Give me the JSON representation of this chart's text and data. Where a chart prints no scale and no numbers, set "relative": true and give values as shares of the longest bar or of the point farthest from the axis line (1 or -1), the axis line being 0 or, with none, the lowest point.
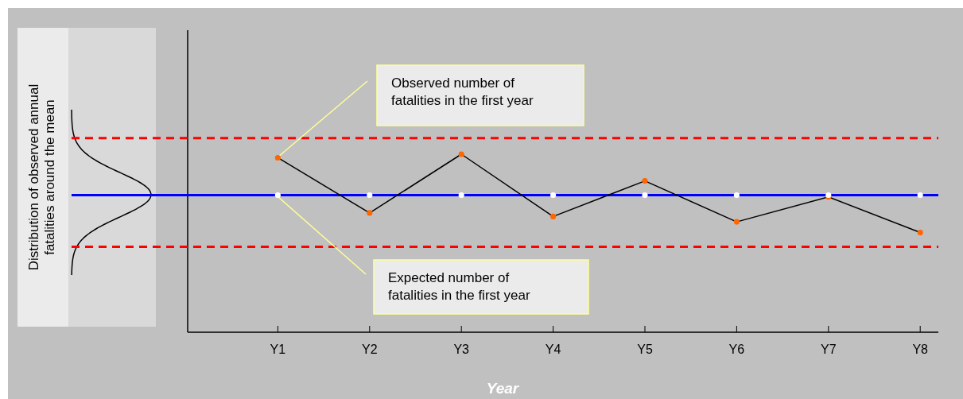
{
  "chart_data": {
    "type": "line",
    "relative": true,
    "xlabel": "Year",
    "categories": [
      "Y1",
      "Y2",
      "Y3",
      "Y4",
      "Y5",
      "Y6",
      "Y7",
      "Y8"
    ],
    "series": [
      {
        "color": "#ff6600",
        "values": [
          0.98,
          0.67,
          1.0,
          0.65,
          0.85,
          0.62,
          0.76,
          0.56
        ]
      },
      {
        "type": "scatter",
        "color": "#ffffff",
        "values": [
          0.77,
          0.77,
          0.77,
          0.77,
          0.77,
          0.77,
          0.77,
          0.77
        ]
      }
    ],
    "ref_lines": [
      {
        "axis": "y",
        "value": 1.09,
        "color": "#ff0000",
        "line_style": "dashed"
      },
      {
        "axis": "y",
        "value": 0.77,
        "color": "#0000ff",
        "line_style": "solid"
      },
      {
        "axis": "y",
        "value": 0.48,
        "color": "#ff0000",
        "line_style": "dashed"
      }
    ],
    "annotations": [
      "Observed number of fatalities in the first year",
      "Expected number of fatalities in the first year",
      "Distribution of observed annual fatalities around the mean"
    ],
    "marker": "circle",
    "tick_labels": "x"
  }
}
